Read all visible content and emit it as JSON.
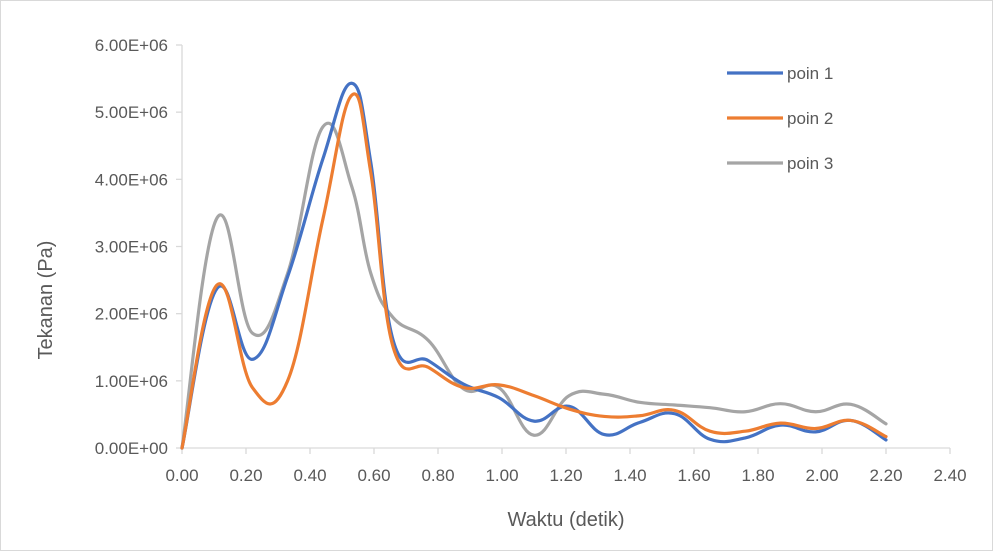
{
  "chart_data": {
    "type": "line",
    "title": "",
    "xlabel": "Waktu (detik)",
    "ylabel": "Tekanan (Pa)",
    "xlim": [
      0,
      2.4
    ],
    "ylim": [
      0,
      6000000
    ],
    "x_ticks": [
      "0.00",
      "0.20",
      "0.40",
      "0.60",
      "0.80",
      "1.00",
      "1.20",
      "1.40",
      "1.60",
      "1.80",
      "2.00",
      "2.20",
      "2.40"
    ],
    "y_ticks": [
      "0.00E+00",
      "1.00E+06",
      "2.00E+06",
      "3.00E+06",
      "4.00E+06",
      "5.00E+06",
      "6.00E+06"
    ],
    "grid": false,
    "legend": "top-right",
    "series": [
      {
        "name": "poin 1",
        "color": "#4472C4",
        "x": [
          0,
          0.11,
          0.22,
          0.33,
          0.44,
          0.53,
          0.59,
          0.66,
          0.77,
          0.88,
          0.99,
          1.1,
          1.21,
          1.32,
          1.43,
          1.54,
          1.65,
          1.76,
          1.87,
          1.98,
          2.09,
          2.2
        ],
        "y": [
          0,
          2380000,
          1320000,
          2550000,
          4300000,
          5430000,
          4250000,
          1600000,
          1300000,
          950000,
          750000,
          400000,
          620000,
          200000,
          380000,
          510000,
          130000,
          150000,
          340000,
          240000,
          410000,
          120000
        ]
      },
      {
        "name": "poin 2",
        "color": "#ED7D31",
        "x": [
          0,
          0.11,
          0.22,
          0.33,
          0.44,
          0.53,
          0.59,
          0.66,
          0.77,
          0.88,
          0.99,
          1.1,
          1.21,
          1.32,
          1.43,
          1.54,
          1.65,
          1.76,
          1.87,
          1.98,
          2.09,
          2.2
        ],
        "y": [
          0,
          2430000,
          900000,
          1000000,
          3400000,
          5250000,
          4100000,
          1500000,
          1200000,
          900000,
          940000,
          780000,
          580000,
          470000,
          480000,
          560000,
          250000,
          250000,
          370000,
          290000,
          410000,
          170000
        ]
      },
      {
        "name": "poin 3",
        "color": "#A5A5A5",
        "x": [
          0,
          0.11,
          0.22,
          0.33,
          0.44,
          0.53,
          0.59,
          0.66,
          0.77,
          0.88,
          0.99,
          1.1,
          1.21,
          1.32,
          1.43,
          1.54,
          1.65,
          1.76,
          1.87,
          1.98,
          2.09,
          2.2
        ],
        "y": [
          0,
          3430000,
          1710000,
          2600000,
          4780000,
          3900000,
          2600000,
          1940000,
          1600000,
          880000,
          900000,
          190000,
          780000,
          800000,
          680000,
          640000,
          600000,
          540000,
          660000,
          540000,
          650000,
          360000
        ]
      }
    ]
  }
}
